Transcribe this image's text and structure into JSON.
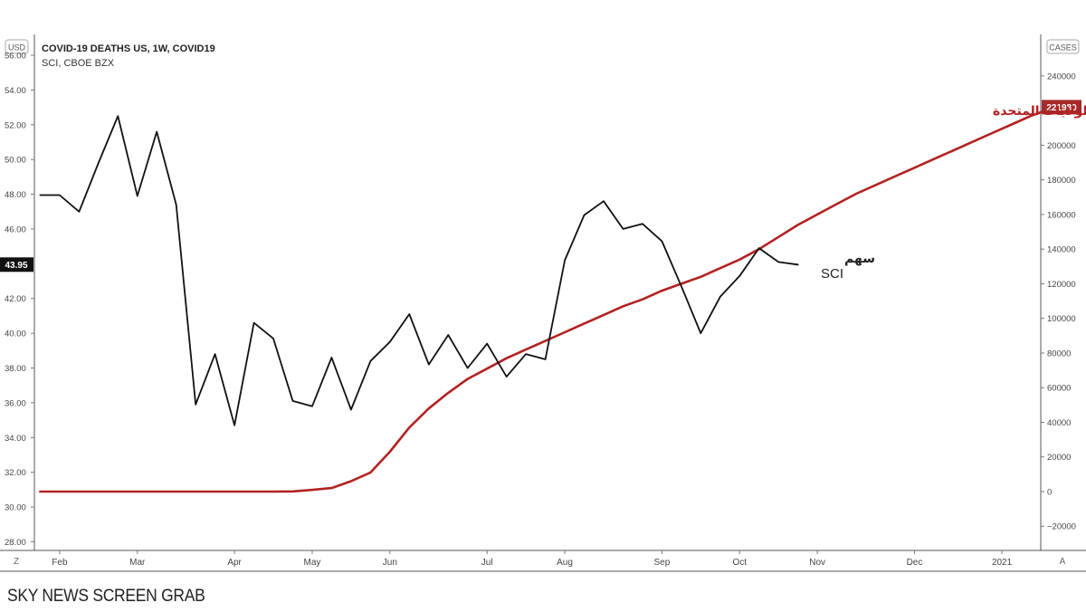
{
  "chart_data": {
    "type": "line",
    "title": "COVID-19 DEATHS US, 1W, COVID19",
    "subtitle": "SCI, CBOE BZX",
    "left_axis": {
      "unit": "USD",
      "ylim": [
        27.5,
        57.2
      ],
      "ticks": [
        "56.00",
        "54.00",
        "52.00",
        "50.00",
        "48.00",
        "46.00",
        "42.00",
        "40.00",
        "38.00",
        "36.00",
        "34.00",
        "32.00",
        "30.00",
        "28.00"
      ],
      "tick_values": [
        56,
        54,
        52,
        50,
        48,
        46,
        42,
        40,
        38,
        36,
        34,
        32,
        30,
        28
      ],
      "last_price_label": "43.95",
      "last_price_value": 43.95
    },
    "right_axis": {
      "unit": "CASES",
      "ylim": [
        -34000,
        264000
      ],
      "ticks": [
        "240000",
        "220000",
        "200000",
        "180000",
        "160000",
        "140000",
        "120000",
        "100000",
        "80000",
        "60000",
        "40000",
        "20000",
        "0",
        "−20000"
      ],
      "tick_values": [
        240000,
        220000,
        200000,
        180000,
        160000,
        140000,
        120000,
        100000,
        80000,
        60000,
        40000,
        20000,
        0,
        -20000
      ],
      "last_value_label": "221980",
      "last_value": 221980
    },
    "x_axis": {
      "labels": [
        "Feb",
        "Mar",
        "Apr",
        "May",
        "Jun",
        "Jul",
        "Aug",
        "Sep",
        "Oct",
        "Nov",
        "Dec",
        "2021"
      ],
      "label_weeks": [
        1.0,
        5.0,
        10.0,
        14.0,
        18.0,
        23.0,
        27.0,
        32.0,
        36.0,
        40.0,
        45.0,
        49.5
      ],
      "xlim": [
        -0.3,
        51.5
      ]
    },
    "series": [
      {
        "name": "وفيات كورونا في الولايات المتحدة",
        "color": "#b22222",
        "axis": "right",
        "values": [
          0,
          0,
          0,
          0,
          0,
          0,
          0,
          0,
          0,
          0,
          0,
          0,
          0,
          100,
          1000,
          2000,
          6000,
          11000,
          23000,
          37000,
          48000,
          57000,
          65000,
          71000,
          77000,
          82000,
          87000,
          92000,
          97000,
          102000,
          107000,
          111000,
          116000,
          120000,
          124000,
          129000,
          134000,
          140000,
          147000,
          154000,
          160000,
          166000,
          172000,
          177000,
          182000,
          187000,
          192000,
          197000,
          202000,
          207000,
          212000,
          217000,
          221000,
          223000
        ],
        "x_start": 0
      },
      {
        "name": "سهم SCI",
        "color": "#111111",
        "axis": "left",
        "values": [
          47.95,
          47.95,
          47.0,
          49.8,
          52.5,
          47.9,
          51.6,
          47.4,
          35.9,
          38.8,
          34.7,
          40.6,
          39.7,
          36.1,
          35.8,
          38.6,
          35.6,
          38.4,
          39.5,
          41.1,
          38.2,
          39.9,
          38.0,
          39.4,
          37.5,
          38.8,
          38.5,
          44.2,
          46.8,
          47.6,
          46.0,
          46.3,
          45.3,
          42.7,
          40.0,
          42.1,
          43.3,
          44.9,
          44.1,
          43.95
        ],
        "x_start": 0
      }
    ],
    "annotations": {
      "deaths_label": "وفيات كورونا في الولايات المتحدة",
      "sci_label_ar": "سهم",
      "sci_label_en": "SCI"
    },
    "corner_labels": {
      "left": "Z",
      "right": "A"
    },
    "grid": false,
    "legend": "top-left"
  },
  "credit": "SKY NEWS SCREEN GRAB"
}
